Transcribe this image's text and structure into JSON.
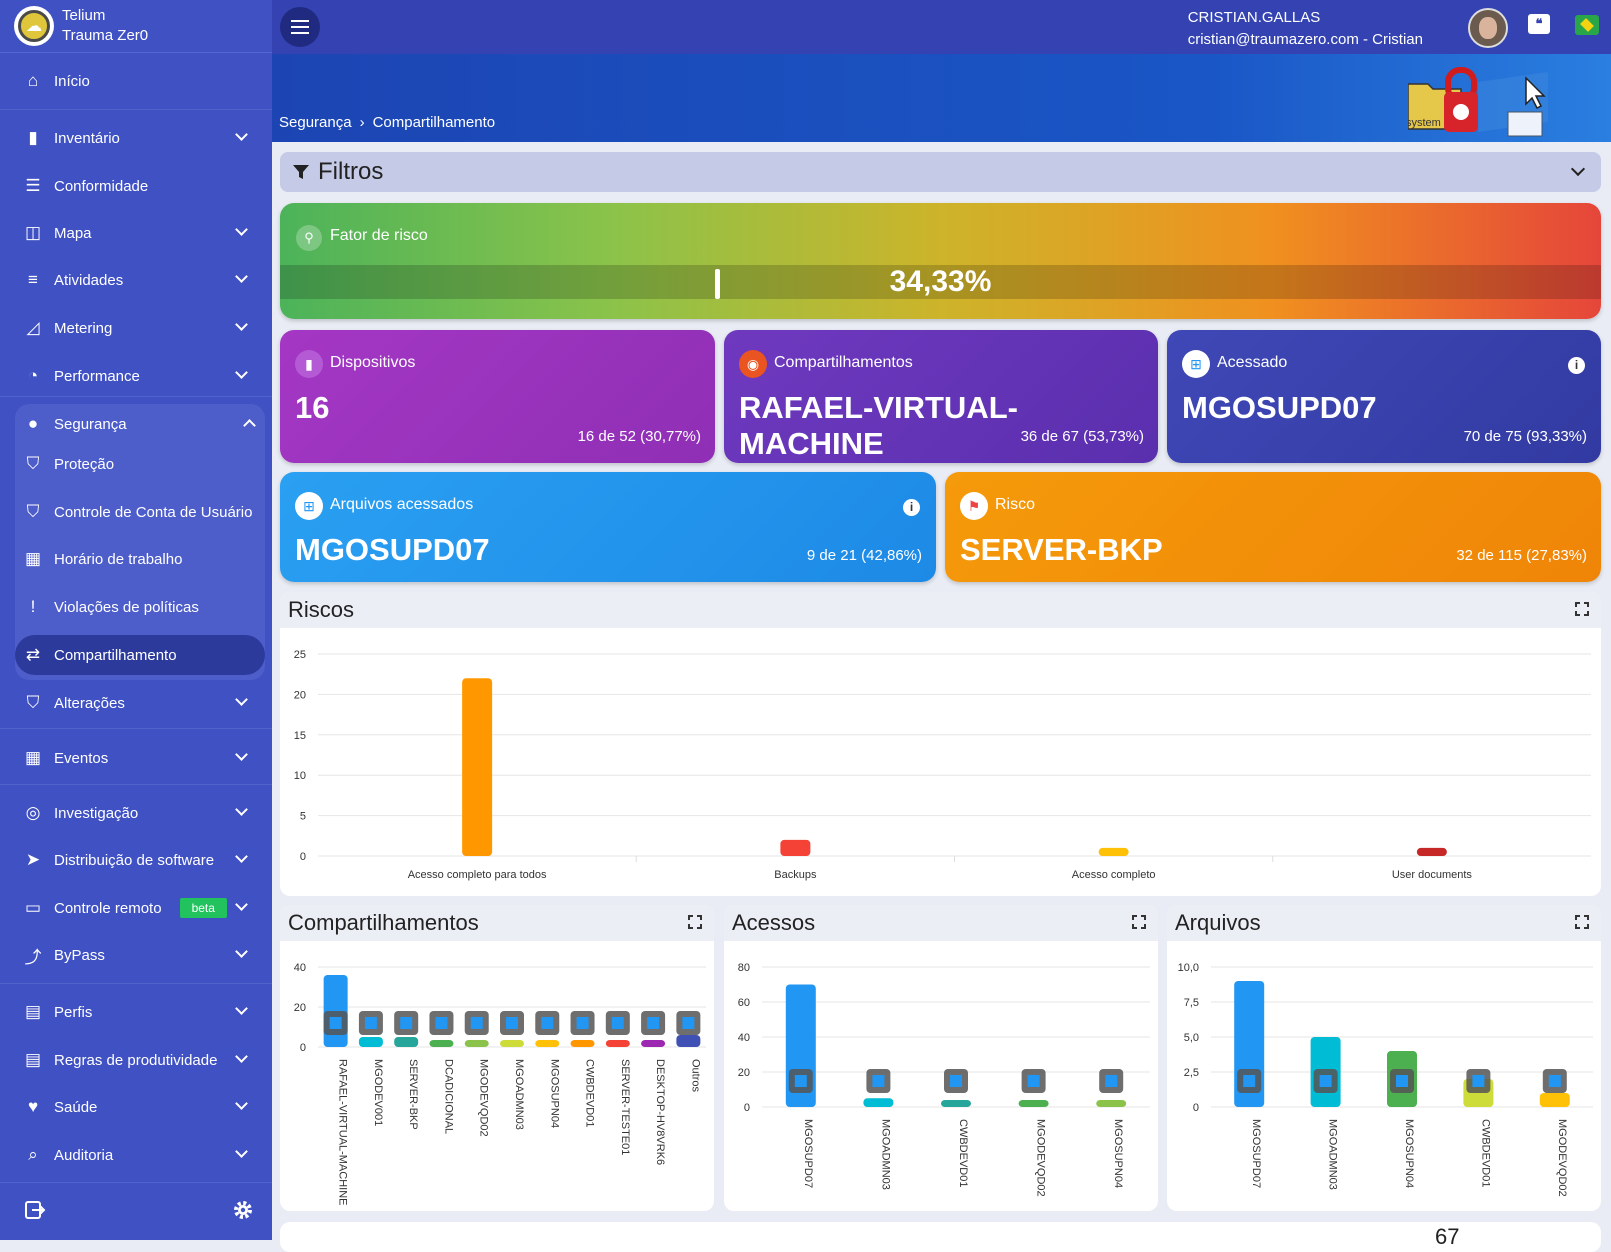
{
  "brand": {
    "line1": "Telium",
    "line2": "Trauma Zer0"
  },
  "nav": [
    {
      "id": "inicio",
      "label": "Início",
      "icon": "home-icon",
      "glyph": "⌂",
      "chev": false
    },
    {
      "id": "inventario",
      "label": "Inventário",
      "icon": "device-icon",
      "glyph": "▮",
      "chev": true
    },
    {
      "id": "conformidade",
      "label": "Conformidade",
      "icon": "checklist-icon",
      "glyph": "☰",
      "chev": false
    },
    {
      "id": "mapa",
      "label": "Mapa",
      "icon": "map-icon",
      "glyph": "◫",
      "chev": true
    },
    {
      "id": "atividades",
      "label": "Atividades",
      "icon": "activity-icon",
      "glyph": "≡",
      "chev": true
    },
    {
      "id": "metering",
      "label": "Metering",
      "icon": "line-chart-icon",
      "glyph": "◿",
      "chev": true
    },
    {
      "id": "performance",
      "label": "Performance",
      "icon": "gauge-icon",
      "glyph": "◔",
      "chev": true
    },
    {
      "id": "seguranca",
      "label": "Segurança",
      "icon": "user-shield-icon",
      "glyph": "●",
      "chev": true
    },
    {
      "id": "protecao",
      "label": "Proteção",
      "icon": "shield-icon",
      "glyph": "⛉",
      "chev": false
    },
    {
      "id": "controle-conta",
      "label": "Controle de Conta de Usuário",
      "icon": "shield-half-icon",
      "glyph": "⛉",
      "chev": false
    },
    {
      "id": "horario",
      "label": "Horário de trabalho",
      "icon": "calendar-icon",
      "glyph": "▦",
      "chev": false
    },
    {
      "id": "violacoes",
      "label": "Violações de políticas",
      "icon": "shield-alert-icon",
      "glyph": "!",
      "chev": false
    },
    {
      "id": "compartilhamento",
      "label": "Compartilhamento",
      "icon": "share-icon",
      "glyph": "⇄",
      "chev": false
    },
    {
      "id": "alteracoes",
      "label": "Alterações",
      "icon": "shield-sync-icon",
      "glyph": "⛉",
      "chev": true
    },
    {
      "id": "eventos",
      "label": "Eventos",
      "icon": "calendar-alert-icon",
      "glyph": "▦",
      "chev": true
    },
    {
      "id": "investigacao",
      "label": "Investigação",
      "icon": "fingerprint-icon",
      "glyph": "◎",
      "chev": true
    },
    {
      "id": "distribuicao",
      "label": "Distribuição de software",
      "icon": "send-icon",
      "glyph": "➤",
      "chev": true
    },
    {
      "id": "controle-remoto",
      "label": "Controle remoto",
      "icon": "remote-desktop-icon",
      "glyph": "▭",
      "chev": true
    },
    {
      "id": "bypass",
      "label": "ByPass",
      "icon": "fork-icon",
      "glyph": "⤴",
      "chev": true
    },
    {
      "id": "perfis",
      "label": "Perfis",
      "icon": "id-card-icon",
      "glyph": "▤",
      "chev": true
    },
    {
      "id": "regras",
      "label": "Regras de produtividade",
      "icon": "clipboard-icon",
      "glyph": "▤",
      "chev": true
    },
    {
      "id": "saude",
      "label": "Saúde",
      "icon": "heart-pulse-icon",
      "glyph": "♥",
      "chev": true
    },
    {
      "id": "auditoria",
      "label": "Auditoria",
      "icon": "audit-icon",
      "glyph": "⌕",
      "chev": true
    }
  ],
  "beta_label": "beta",
  "user": {
    "name": "CRISTIAN.GALLAS",
    "email": "cristian@traumazero.com - Cristian"
  },
  "breadcrumb": {
    "parent": "Segurança",
    "current": "Compartilhamento"
  },
  "sys_label": "system",
  "filters_label": "Filtros",
  "risk": {
    "label": "Fator de risco",
    "value_text": "34,33%",
    "value": 0.3433
  },
  "kpis": {
    "dispositivos": {
      "title": "Dispositivos",
      "big": "16",
      "small": "16 de 52 (30,77%)"
    },
    "compartilhamentos": {
      "title": "Compartilhamentos",
      "big": "RAFAEL-VIRTUAL-MACHINE",
      "small": "36 de 67 (53,73%)"
    },
    "acessado": {
      "title": "Acessado",
      "big": "MGOSUPD07",
      "small": "70 de 75 (93,33%)"
    },
    "arquivos": {
      "title": "Arquivos acessados",
      "big": "MGOSUPD07",
      "small": "9 de 21 (42,86%)"
    },
    "risco": {
      "title": "Risco",
      "big": "SERVER-BKP",
      "small": "32 de 115 (27,83%)"
    }
  },
  "panels": {
    "riscos": "Riscos",
    "compartilhamentos": "Compartilhamentos",
    "acessos": "Acessos",
    "arquivos": "Arquivos"
  },
  "footer_partial": "67",
  "chart_data": [
    {
      "id": "riscos",
      "type": "bar",
      "categories": [
        "Acesso completo para todos",
        "Backups",
        "Acesso completo",
        "User documents"
      ],
      "values": [
        22,
        2,
        1,
        1
      ],
      "colors": [
        "#ff9800",
        "#f44336",
        "#ffc107",
        "#c62828"
      ],
      "ylim": [
        0,
        25
      ],
      "yticks": [
        "0",
        "5",
        "10",
        "15",
        "20",
        "25"
      ]
    },
    {
      "id": "compartilhamentos",
      "type": "bar",
      "categories": [
        "RAFAEL-VIRTUAL-MACHINE",
        "MGODEV001",
        "SERVER-BKP",
        "DCADICIONAL",
        "MGODEVQD02",
        "MGOADMN03",
        "MGOSUPN04",
        "CWBDEVD01",
        "SERVER-TESTE01",
        "DESKTOP-HV8VRK6",
        "Outros"
      ],
      "values": [
        36,
        5,
        5,
        3,
        3,
        2,
        2,
        1,
        1,
        1,
        6
      ],
      "colors": [
        "#2196f3",
        "#00bcd4",
        "#26a69a",
        "#4caf50",
        "#8bc34a",
        "#cddc39",
        "#ffc107",
        "#ff9800",
        "#f44336",
        "#9c27b0",
        "#3f51b5"
      ],
      "ylim": [
        0,
        40
      ],
      "yticks": [
        "0",
        "20",
        "40"
      ]
    },
    {
      "id": "acessos",
      "type": "bar",
      "categories": [
        "MGOSUPD07",
        "MGOADMN03",
        "CWBDEVD01",
        "MGODEVQD02",
        "MGOSUPN04"
      ],
      "values": [
        70,
        5,
        0,
        0,
        0
      ],
      "colors": [
        "#2196f3",
        "#00bcd4",
        "#26a69a",
        "#4caf50",
        "#8bc34a"
      ],
      "ylim": [
        0,
        80
      ],
      "yticks": [
        "0",
        "20",
        "40",
        "60",
        "80"
      ]
    },
    {
      "id": "arquivos",
      "type": "bar",
      "categories": [
        "MGOSUPD07",
        "MGOADMN03",
        "MGOSUPN04",
        "CWBDEVD01",
        "MGODEVQD02"
      ],
      "values": [
        9,
        5,
        4,
        2,
        1
      ],
      "colors": [
        "#2196f3",
        "#00bcd4",
        "#4caf50",
        "#cddc39",
        "#ffc107"
      ],
      "ylim": [
        0,
        10
      ],
      "yticks": [
        "0",
        "2,5",
        "5,0",
        "7,5",
        "10,0"
      ]
    }
  ]
}
